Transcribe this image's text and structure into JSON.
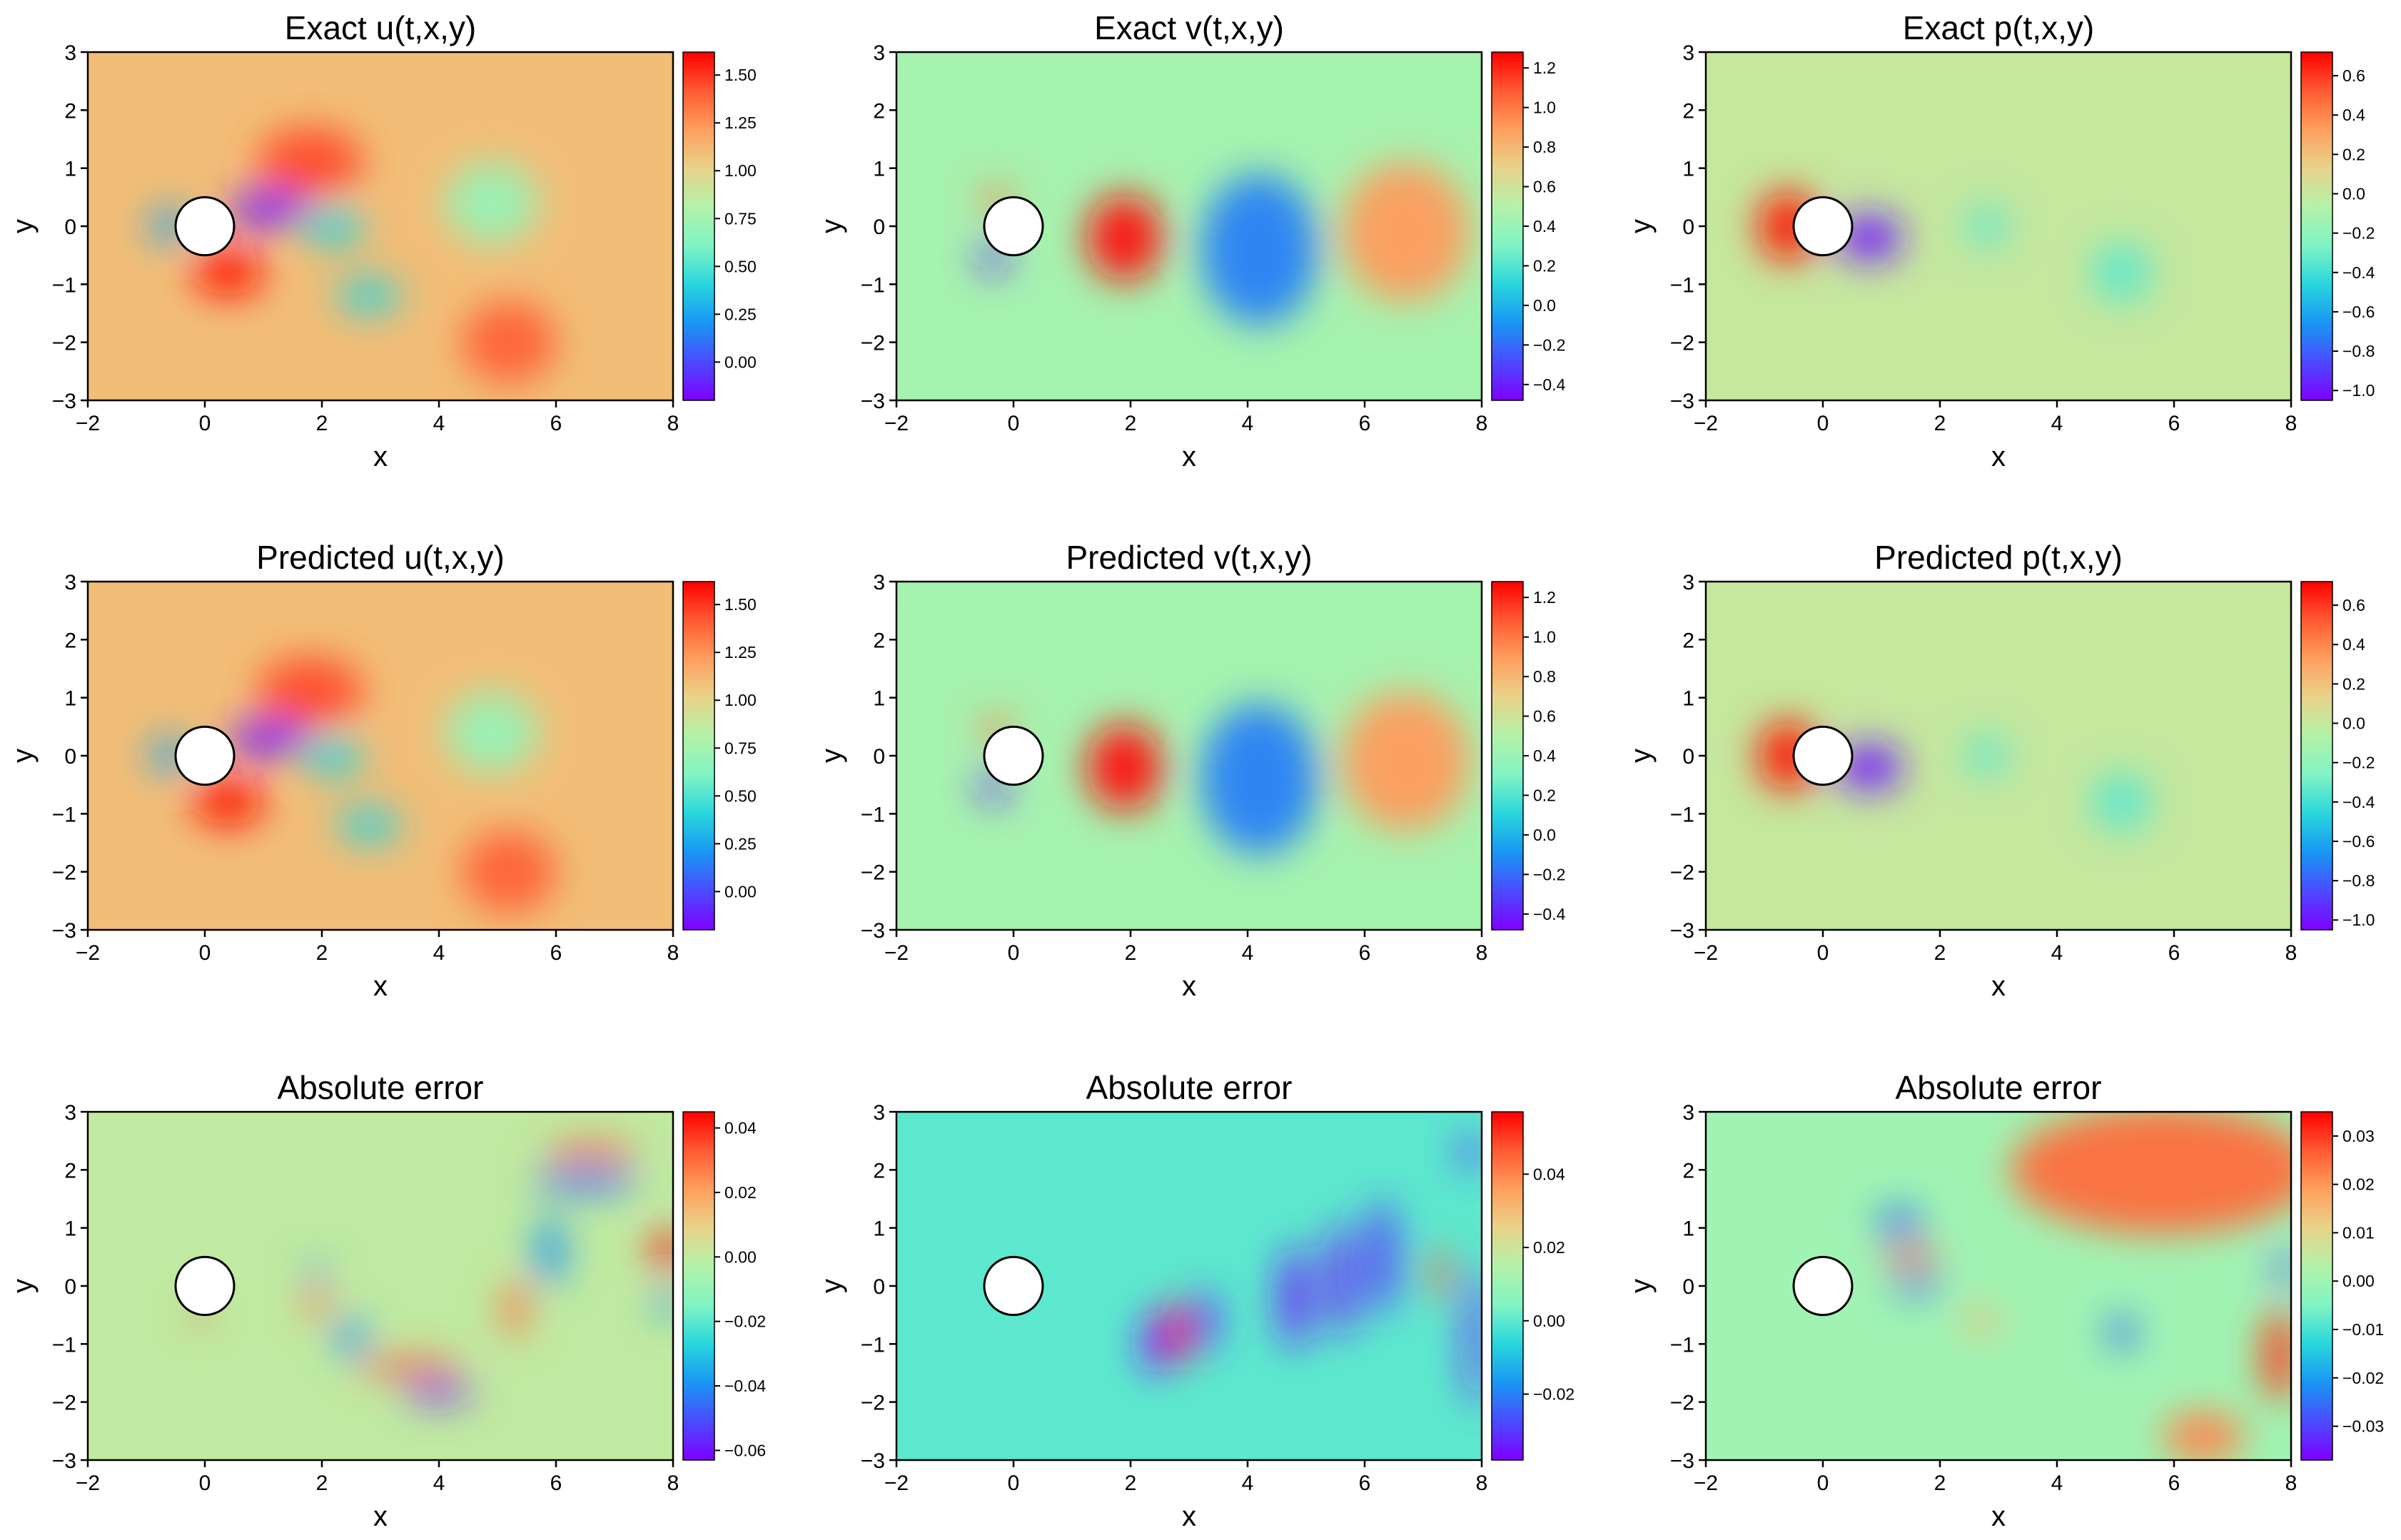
{
  "figure_title": "",
  "colors": {
    "rainbow": [
      "#7f00ff",
      "#4b4bff",
      "#1996f3",
      "#28d6dd",
      "#7ff4c4",
      "#b3f2a8",
      "#e8d38a",
      "#ff9f5e",
      "#ff5a32",
      "#ff0000"
    ],
    "axis": "#000000",
    "cylinder_fill": "#ffffff"
  },
  "chart_data": [
    {
      "id": "exact-u",
      "type": "heatmap",
      "title": "Exact u(t,x,y)",
      "xlabel": "x",
      "ylabel": "y",
      "xlim": [
        -2,
        8
      ],
      "ylim": [
        -3,
        3
      ],
      "x_ticks": [
        "−2",
        "0",
        "2",
        "4",
        "6",
        "8"
      ],
      "x_tick_values": [
        -2,
        0,
        2,
        4,
        6,
        8
      ],
      "y_ticks": [
        "−3",
        "−2",
        "−1",
        "0",
        "1",
        "2",
        "3"
      ],
      "y_tick_values": [
        -3,
        -2,
        -1,
        0,
        1,
        2,
        3
      ],
      "colorbar_range": [
        -0.2,
        1.62
      ],
      "colorbar_ticks": [
        "0.00",
        "0.25",
        "0.50",
        "0.75",
        "1.00",
        "1.25",
        "1.50"
      ],
      "colorbar_tick_values": [
        0,
        0.25,
        0.5,
        0.75,
        1.0,
        1.25,
        1.5
      ],
      "background_value": 1.1,
      "cylinder": {
        "cx": 0,
        "cy": 0,
        "r": 0.5
      },
      "blobs": [
        {
          "x": 1.1,
          "y": 0.3,
          "rx": 0.7,
          "ry": 0.3,
          "v": -0.15
        },
        {
          "x": 2.2,
          "y": 0.0,
          "rx": 0.5,
          "ry": 0.35,
          "v": 0.4
        },
        {
          "x": 2.8,
          "y": -1.2,
          "rx": 0.55,
          "ry": 0.3,
          "v": 0.4
        },
        {
          "x": 0.4,
          "y": -0.8,
          "rx": 0.6,
          "ry": 0.4,
          "v": 1.6
        },
        {
          "x": 1.8,
          "y": 1.1,
          "rx": 0.9,
          "ry": 0.6,
          "v": 1.45
        },
        {
          "x": 5.2,
          "y": -2.0,
          "rx": 0.8,
          "ry": 0.7,
          "v": 1.4
        },
        {
          "x": 4.9,
          "y": 0.4,
          "rx": 0.8,
          "ry": 0.7,
          "v": 0.7
        },
        {
          "x": -0.6,
          "y": 0.0,
          "rx": 0.35,
          "ry": 0.3,
          "v": 0.25
        }
      ]
    },
    {
      "id": "exact-v",
      "type": "heatmap",
      "title": "Exact v(t,x,y)",
      "xlabel": "x",
      "ylabel": "y",
      "xlim": [
        -2,
        8
      ],
      "ylim": [
        -3,
        3
      ],
      "x_ticks": [
        "−2",
        "0",
        "2",
        "4",
        "6",
        "8"
      ],
      "x_tick_values": [
        -2,
        0,
        2,
        4,
        6,
        8
      ],
      "y_ticks": [
        "−3",
        "−2",
        "−1",
        "0",
        "1",
        "2",
        "3"
      ],
      "y_tick_values": [
        -3,
        -2,
        -1,
        0,
        1,
        2,
        3
      ],
      "colorbar_range": [
        -0.48,
        1.28
      ],
      "colorbar_ticks": [
        "−0.4",
        "−0.2",
        "0.0",
        "0.2",
        "0.4",
        "0.6",
        "0.8",
        "1.0",
        "1.2"
      ],
      "colorbar_tick_values": [
        -0.4,
        -0.2,
        0,
        0.2,
        0.4,
        0.6,
        0.8,
        1.0,
        1.2
      ],
      "background_value": 0.45,
      "cylinder": {
        "cx": 0,
        "cy": 0,
        "r": 0.5
      },
      "blobs": [
        {
          "x": 1.9,
          "y": -0.2,
          "rx": 0.65,
          "ry": 0.75,
          "v": 1.25
        },
        {
          "x": 4.2,
          "y": -0.4,
          "rx": 1.0,
          "ry": 1.3,
          "v": -0.15
        },
        {
          "x": 6.7,
          "y": -0.1,
          "rx": 1.1,
          "ry": 1.2,
          "v": 0.9
        },
        {
          "x": -0.35,
          "y": -0.55,
          "rx": 0.25,
          "ry": 0.25,
          "v": -0.4
        },
        {
          "x": -0.3,
          "y": 0.45,
          "rx": 0.25,
          "ry": 0.25,
          "v": 1.0
        }
      ]
    },
    {
      "id": "exact-p",
      "type": "heatmap",
      "title": "Exact p(t,x,y)",
      "xlabel": "x",
      "ylabel": "y",
      "xlim": [
        -2,
        8
      ],
      "ylim": [
        -3,
        3
      ],
      "x_ticks": [
        "−2",
        "0",
        "2",
        "4",
        "6",
        "8"
      ],
      "x_tick_values": [
        -2,
        0,
        2,
        4,
        6,
        8
      ],
      "y_ticks": [
        "−3",
        "−2",
        "−1",
        "0",
        "1",
        "2",
        "3"
      ],
      "y_tick_values": [
        -3,
        -2,
        -1,
        0,
        1,
        2,
        3
      ],
      "colorbar_range": [
        -1.05,
        0.72
      ],
      "colorbar_ticks": [
        "−1.0",
        "−0.8",
        "−0.6",
        "−0.4",
        "−0.2",
        "0.0",
        "0.2",
        "0.4",
        "0.6"
      ],
      "colorbar_tick_values": [
        -1.0,
        -0.8,
        -0.6,
        -0.4,
        -0.2,
        0,
        0.2,
        0.4,
        0.6
      ],
      "background_value": 0.0,
      "cylinder": {
        "cx": 0,
        "cy": 0,
        "r": 0.5
      },
      "blobs": [
        {
          "x": -0.6,
          "y": 0.0,
          "rx": 0.5,
          "ry": 0.6,
          "v": 0.7
        },
        {
          "x": 0.8,
          "y": -0.2,
          "rx": 0.55,
          "ry": 0.4,
          "v": -1.0
        },
        {
          "x": 2.8,
          "y": 0.0,
          "rx": 0.35,
          "ry": 0.35,
          "v": -0.35
        },
        {
          "x": 5.1,
          "y": -0.8,
          "rx": 0.5,
          "ry": 0.5,
          "v": -0.35
        }
      ]
    },
    {
      "id": "predicted-u",
      "type": "heatmap",
      "title": "Predicted u(t,x,y)",
      "xlabel": "x",
      "ylabel": "y",
      "xlim": [
        -2,
        8
      ],
      "ylim": [
        -3,
        3
      ],
      "x_ticks": [
        "−2",
        "0",
        "2",
        "4",
        "6",
        "8"
      ],
      "x_tick_values": [
        -2,
        0,
        2,
        4,
        6,
        8
      ],
      "y_ticks": [
        "−3",
        "−2",
        "−1",
        "0",
        "1",
        "2",
        "3"
      ],
      "y_tick_values": [
        -3,
        -2,
        -1,
        0,
        1,
        2,
        3
      ],
      "colorbar_range": [
        -0.2,
        1.62
      ],
      "colorbar_ticks": [
        "0.00",
        "0.25",
        "0.50",
        "0.75",
        "1.00",
        "1.25",
        "1.50"
      ],
      "colorbar_tick_values": [
        0,
        0.25,
        0.5,
        0.75,
        1.0,
        1.25,
        1.5
      ],
      "background_value": 1.1,
      "cylinder": {
        "cx": 0,
        "cy": 0,
        "r": 0.5
      },
      "blobs": [
        {
          "x": 1.1,
          "y": 0.3,
          "rx": 0.7,
          "ry": 0.3,
          "v": -0.15
        },
        {
          "x": 2.2,
          "y": 0.0,
          "rx": 0.5,
          "ry": 0.35,
          "v": 0.4
        },
        {
          "x": 2.8,
          "y": -1.2,
          "rx": 0.55,
          "ry": 0.3,
          "v": 0.4
        },
        {
          "x": 0.4,
          "y": -0.8,
          "rx": 0.6,
          "ry": 0.4,
          "v": 1.6
        },
        {
          "x": 1.8,
          "y": 1.1,
          "rx": 0.9,
          "ry": 0.6,
          "v": 1.45
        },
        {
          "x": 5.2,
          "y": -2.0,
          "rx": 0.8,
          "ry": 0.7,
          "v": 1.4
        },
        {
          "x": 4.9,
          "y": 0.4,
          "rx": 0.8,
          "ry": 0.7,
          "v": 0.7
        },
        {
          "x": -0.6,
          "y": 0.0,
          "rx": 0.35,
          "ry": 0.3,
          "v": 0.25
        }
      ]
    },
    {
      "id": "predicted-v",
      "type": "heatmap",
      "title": "Predicted v(t,x,y)",
      "xlabel": "x",
      "ylabel": "y",
      "xlim": [
        -2,
        8
      ],
      "ylim": [
        -3,
        3
      ],
      "x_ticks": [
        "−2",
        "0",
        "2",
        "4",
        "6",
        "8"
      ],
      "x_tick_values": [
        -2,
        0,
        2,
        4,
        6,
        8
      ],
      "y_ticks": [
        "−3",
        "−2",
        "−1",
        "0",
        "1",
        "2",
        "3"
      ],
      "y_tick_values": [
        -3,
        -2,
        -1,
        0,
        1,
        2,
        3
      ],
      "colorbar_range": [
        -0.48,
        1.28
      ],
      "colorbar_ticks": [
        "−0.4",
        "−0.2",
        "0.0",
        "0.2",
        "0.4",
        "0.6",
        "0.8",
        "1.0",
        "1.2"
      ],
      "colorbar_tick_values": [
        -0.4,
        -0.2,
        0,
        0.2,
        0.4,
        0.6,
        0.8,
        1.0,
        1.2
      ],
      "background_value": 0.45,
      "cylinder": {
        "cx": 0,
        "cy": 0,
        "r": 0.5
      },
      "blobs": [
        {
          "x": 1.9,
          "y": -0.2,
          "rx": 0.65,
          "ry": 0.75,
          "v": 1.25
        },
        {
          "x": 4.2,
          "y": -0.4,
          "rx": 1.0,
          "ry": 1.3,
          "v": -0.15
        },
        {
          "x": 6.7,
          "y": -0.1,
          "rx": 1.1,
          "ry": 1.2,
          "v": 0.9
        },
        {
          "x": -0.35,
          "y": -0.55,
          "rx": 0.25,
          "ry": 0.25,
          "v": -0.4
        },
        {
          "x": -0.3,
          "y": 0.45,
          "rx": 0.25,
          "ry": 0.25,
          "v": 1.0
        }
      ]
    },
    {
      "id": "predicted-p",
      "type": "heatmap",
      "title": "Predicted p(t,x,y)",
      "xlabel": "x",
      "ylabel": "y",
      "xlim": [
        -2,
        8
      ],
      "ylim": [
        -3,
        3
      ],
      "x_ticks": [
        "−2",
        "0",
        "2",
        "4",
        "6",
        "8"
      ],
      "x_tick_values": [
        -2,
        0,
        2,
        4,
        6,
        8
      ],
      "y_ticks": [
        "−3",
        "−2",
        "−1",
        "0",
        "1",
        "2",
        "3"
      ],
      "y_tick_values": [
        -3,
        -2,
        -1,
        0,
        1,
        2,
        3
      ],
      "colorbar_range": [
        -1.05,
        0.72
      ],
      "colorbar_ticks": [
        "−1.0",
        "−0.8",
        "−0.6",
        "−0.4",
        "−0.2",
        "0.0",
        "0.2",
        "0.4",
        "0.6"
      ],
      "colorbar_tick_values": [
        -1.0,
        -0.8,
        -0.6,
        -0.4,
        -0.2,
        0,
        0.2,
        0.4,
        0.6
      ],
      "background_value": 0.0,
      "cylinder": {
        "cx": 0,
        "cy": 0,
        "r": 0.5
      },
      "blobs": [
        {
          "x": -0.6,
          "y": 0.0,
          "rx": 0.5,
          "ry": 0.6,
          "v": 0.7
        },
        {
          "x": 0.8,
          "y": -0.2,
          "rx": 0.55,
          "ry": 0.4,
          "v": -1.0
        },
        {
          "x": 2.8,
          "y": 0.0,
          "rx": 0.35,
          "ry": 0.35,
          "v": -0.35
        },
        {
          "x": 5.1,
          "y": -0.8,
          "rx": 0.5,
          "ry": 0.5,
          "v": -0.35
        }
      ]
    },
    {
      "id": "error-u",
      "type": "heatmap",
      "title": "Absolute error",
      "xlabel": "x",
      "ylabel": "y",
      "xlim": [
        -2,
        8
      ],
      "ylim": [
        -3,
        3
      ],
      "x_ticks": [
        "−2",
        "0",
        "2",
        "4",
        "6",
        "8"
      ],
      "x_tick_values": [
        -2,
        0,
        2,
        4,
        6,
        8
      ],
      "y_ticks": [
        "−3",
        "−2",
        "−1",
        "0",
        "1",
        "2",
        "3"
      ],
      "y_tick_values": [
        -3,
        -2,
        -1,
        0,
        1,
        2,
        3
      ],
      "colorbar_range": [
        -0.063,
        0.045
      ],
      "colorbar_ticks": [
        "−0.06",
        "−0.04",
        "−0.02",
        "0.00",
        "0.02",
        "0.04"
      ],
      "colorbar_tick_values": [
        -0.06,
        -0.04,
        -0.02,
        0,
        0.02,
        0.04
      ],
      "background_value": 0.0,
      "cylinder": {
        "cx": 0,
        "cy": 0,
        "r": 0.5
      },
      "blobs": [
        {
          "x": 4.0,
          "y": -1.85,
          "rx": 0.6,
          "ry": 0.15,
          "v": -0.06
        },
        {
          "x": 3.5,
          "y": -1.4,
          "rx": 0.9,
          "ry": 0.15,
          "v": 0.035
        },
        {
          "x": 2.5,
          "y": -0.9,
          "rx": 0.25,
          "ry": 0.35,
          "v": -0.04
        },
        {
          "x": 1.9,
          "y": -0.3,
          "rx": 0.2,
          "ry": 0.25,
          "v": 0.03
        },
        {
          "x": 1.9,
          "y": 0.25,
          "rx": 0.25,
          "ry": 0.12,
          "v": -0.04
        },
        {
          "x": 6.5,
          "y": 1.8,
          "rx": 0.9,
          "ry": 0.2,
          "v": -0.045
        },
        {
          "x": 6.6,
          "y": 2.3,
          "rx": 0.8,
          "ry": 0.15,
          "v": 0.035
        },
        {
          "x": 5.9,
          "y": 0.6,
          "rx": 0.25,
          "ry": 0.6,
          "v": -0.04
        },
        {
          "x": 7.9,
          "y": 0.6,
          "rx": 0.25,
          "ry": 0.35,
          "v": 0.045
        },
        {
          "x": 7.9,
          "y": -0.3,
          "rx": 0.2,
          "ry": 0.25,
          "v": -0.04
        },
        {
          "x": 5.3,
          "y": -0.4,
          "rx": 0.2,
          "ry": 0.5,
          "v": 0.03
        },
        {
          "x": -0.1,
          "y": -0.5,
          "rx": 0.12,
          "ry": 0.12,
          "v": 0.04
        }
      ]
    },
    {
      "id": "error-v",
      "type": "heatmap",
      "title": "Absolute error",
      "xlabel": "x",
      "ylabel": "y",
      "xlim": [
        -2,
        8
      ],
      "ylim": [
        -3,
        3
      ],
      "x_ticks": [
        "−2",
        "0",
        "2",
        "4",
        "6",
        "8"
      ],
      "x_tick_values": [
        -2,
        0,
        2,
        4,
        6,
        8
      ],
      "y_ticks": [
        "−3",
        "−2",
        "−1",
        "0",
        "1",
        "2",
        "3"
      ],
      "y_tick_values": [
        -3,
        -2,
        -1,
        0,
        1,
        2,
        3
      ],
      "colorbar_range": [
        -0.038,
        0.057
      ],
      "colorbar_ticks": [
        "−0.02",
        "0.00",
        "0.02",
        "0.04"
      ],
      "colorbar_tick_values": [
        -0.02,
        0,
        0.02,
        0.04
      ],
      "background_value": 0.0,
      "cylinder": {
        "cx": 0,
        "cy": 0,
        "r": 0.5
      },
      "blobs": [
        {
          "x": 2.8,
          "y": -0.8,
          "rx": 0.22,
          "ry": 0.55,
          "v": 0.055
        },
        {
          "x": 2.4,
          "y": -1.0,
          "rx": 0.2,
          "ry": 0.55,
          "v": -0.035
        },
        {
          "x": 3.3,
          "y": -0.6,
          "rx": 0.2,
          "ry": 0.55,
          "v": -0.03
        },
        {
          "x": 4.8,
          "y": -0.2,
          "rx": 0.25,
          "ry": 0.9,
          "v": -0.035
        },
        {
          "x": 5.6,
          "y": 0.1,
          "rx": 0.22,
          "ry": 1.0,
          "v": -0.035
        },
        {
          "x": 6.3,
          "y": 0.5,
          "rx": 0.25,
          "ry": 1.0,
          "v": -0.03
        },
        {
          "x": 7.3,
          "y": 0.2,
          "rx": 0.15,
          "ry": 0.5,
          "v": 0.045
        },
        {
          "x": 7.9,
          "y": -0.9,
          "rx": 0.15,
          "ry": 1.2,
          "v": -0.035
        },
        {
          "x": 7.8,
          "y": 2.3,
          "rx": 0.2,
          "ry": 0.3,
          "v": -0.03
        }
      ]
    },
    {
      "id": "error-p",
      "type": "heatmap",
      "title": "Absolute error",
      "xlabel": "x",
      "ylabel": "y",
      "xlim": [
        -2,
        8
      ],
      "ylim": [
        -3,
        3
      ],
      "x_ticks": [
        "−2",
        "0",
        "2",
        "4",
        "6",
        "8"
      ],
      "x_tick_values": [
        -2,
        0,
        2,
        4,
        6,
        8
      ],
      "y_ticks": [
        "−3",
        "−2",
        "−1",
        "0",
        "1",
        "2",
        "3"
      ],
      "y_tick_values": [
        -3,
        -2,
        -1,
        0,
        1,
        2,
        3
      ],
      "colorbar_range": [
        -0.037,
        0.035
      ],
      "colorbar_ticks": [
        "−0.03",
        "−0.02",
        "−0.01",
        "0.00",
        "0.01",
        "0.02",
        "0.03"
      ],
      "colorbar_tick_values": [
        -0.03,
        -0.02,
        -0.01,
        0,
        0.01,
        0.02,
        0.03
      ],
      "background_value": 0.0,
      "cylinder": {
        "cx": 0,
        "cy": 0,
        "r": 0.5
      },
      "blobs": [
        {
          "x": 5.8,
          "y": 2.0,
          "rx": 2.6,
          "ry": 1.1,
          "v": 0.025
        },
        {
          "x": 7.8,
          "y": -1.2,
          "rx": 0.3,
          "ry": 0.8,
          "v": 0.03
        },
        {
          "x": 6.5,
          "y": -2.6,
          "rx": 0.7,
          "ry": 0.45,
          "v": 0.022
        },
        {
          "x": 7.9,
          "y": 0.3,
          "rx": 0.2,
          "ry": 0.25,
          "v": -0.03
        },
        {
          "x": 5.1,
          "y": -0.8,
          "rx": 0.25,
          "ry": 0.3,
          "v": -0.025
        },
        {
          "x": 1.5,
          "y": 0.5,
          "rx": 0.45,
          "ry": 0.15,
          "v": 0.03
        },
        {
          "x": 1.6,
          "y": 0.0,
          "rx": 0.45,
          "ry": 0.15,
          "v": -0.025
        },
        {
          "x": 1.3,
          "y": 1.1,
          "rx": 0.4,
          "ry": 0.25,
          "v": -0.025
        },
        {
          "x": 2.7,
          "y": -0.6,
          "rx": 0.3,
          "ry": 0.25,
          "v": 0.015
        }
      ]
    }
  ]
}
